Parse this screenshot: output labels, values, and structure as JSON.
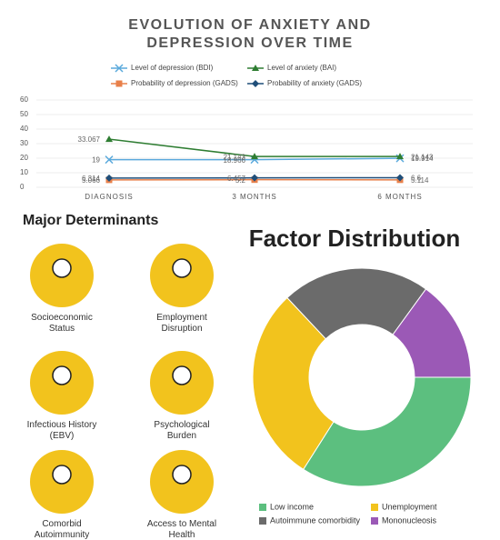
{
  "chart_data": [
    {
      "type": "line",
      "title": "EVOLUTION OF ANXIETY AND DEPRESSION OVER TIME",
      "categories": [
        "DIAGNOSIS",
        "3 MONTHS",
        "6 MONTHS"
      ],
      "series": [
        {
          "name": "Level of depression (BDI)",
          "color": "#5aa9dc",
          "marker": "x",
          "values": [
            19,
            18.966,
            19.914
          ]
        },
        {
          "name": "Level of anxiety (BAI)",
          "color": "#2e7d32",
          "marker": "triangle",
          "values": [
            33.067,
            21.143,
            21.143
          ]
        },
        {
          "name": "Probability of depression (GADS)",
          "color": "#e8804a",
          "marker": "square",
          "values": [
            5.066,
            5.2,
            5.114
          ]
        },
        {
          "name": "Probability of anxiety (GADS)",
          "color": "#1f4e79",
          "marker": "diamond",
          "values": [
            6.314,
            6.457,
            6.6
          ]
        }
      ],
      "ylim": [
        0,
        60
      ],
      "yticks": [
        0,
        10,
        20,
        30,
        40,
        50,
        60
      ],
      "grid": true
    },
    {
      "type": "donut",
      "title": "Factor Distribution",
      "categories": [
        "Low income",
        "Unemployment",
        "Autoimmune comorbidity",
        "Mononucleosis"
      ],
      "values": [
        34,
        29,
        22,
        15
      ],
      "colors": [
        "#5cbf7f",
        "#f2c31d",
        "#6b6b6b",
        "#9b59b6"
      ]
    }
  ],
  "determinants": {
    "title": "Major Determinants",
    "items": [
      "Socioeconomic Status",
      "Employment Disruption",
      "Infectious History (EBV)",
      "Psychological Burden",
      "Comorbid Autoimmunity",
      "Access to Mental Health"
    ]
  }
}
